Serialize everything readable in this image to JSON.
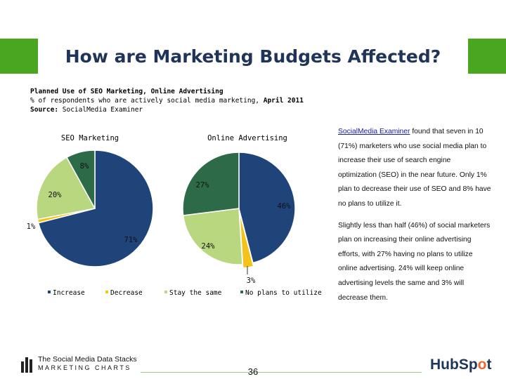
{
  "title": "How are Marketing Budgets Affected?",
  "subtitle": {
    "line1": "Planned Use of SEO Marketing, Online Advertising",
    "line2_prefix": "% of respondents who are actively social media marketing, ",
    "line2_date": "April 2011",
    "line3_label": "Source:",
    "line3_value": " SocialMedia Examiner"
  },
  "colors": {
    "increase": "#1f4479",
    "decrease": "#f3c21b",
    "stay_the_same": "#b8d77e",
    "no_plans": "#2d6b48",
    "title_bar": "#4aa521"
  },
  "chart_data": [
    {
      "type": "pie",
      "title": "SEO Marketing",
      "labels": [
        "Increase",
        "Decrease",
        "Stay the same",
        "No plans to utilize"
      ],
      "values": [
        71,
        1,
        20,
        8
      ]
    },
    {
      "type": "pie",
      "title": "Online Advertising",
      "labels": [
        "Increase",
        "Decrease",
        "Stay the same",
        "No plans to utilize"
      ],
      "values": [
        46,
        3,
        24,
        27
      ]
    }
  ],
  "legend": {
    "increase": "Increase",
    "decrease": "Decrease",
    "stay": "Stay the same",
    "no_plans": "No plans to utilize"
  },
  "side_text": {
    "link": "SocialMedia Examiner",
    "p1_rest": " found that seven in 10 (71%) marketers who use social media plan to increase their use of search engine optimization (SEO) in the near future. Only 1% plan to decrease their use of SEO and 8% have no plans to utilize it.",
    "p2": "Slightly less than half (46%) of social marketers plan on increasing their online advertising efforts, with 27% having no plans to utilize online advertising. 24% will keep online advertising levels the same and 3% will decrease them."
  },
  "footer": {
    "logo_line1": "The Social Media Data Stacks",
    "logo_line2": "MARKETING CHARTS",
    "page": "36",
    "brand_a": "HubSp",
    "brand_b": "o",
    "brand_c": "t"
  }
}
